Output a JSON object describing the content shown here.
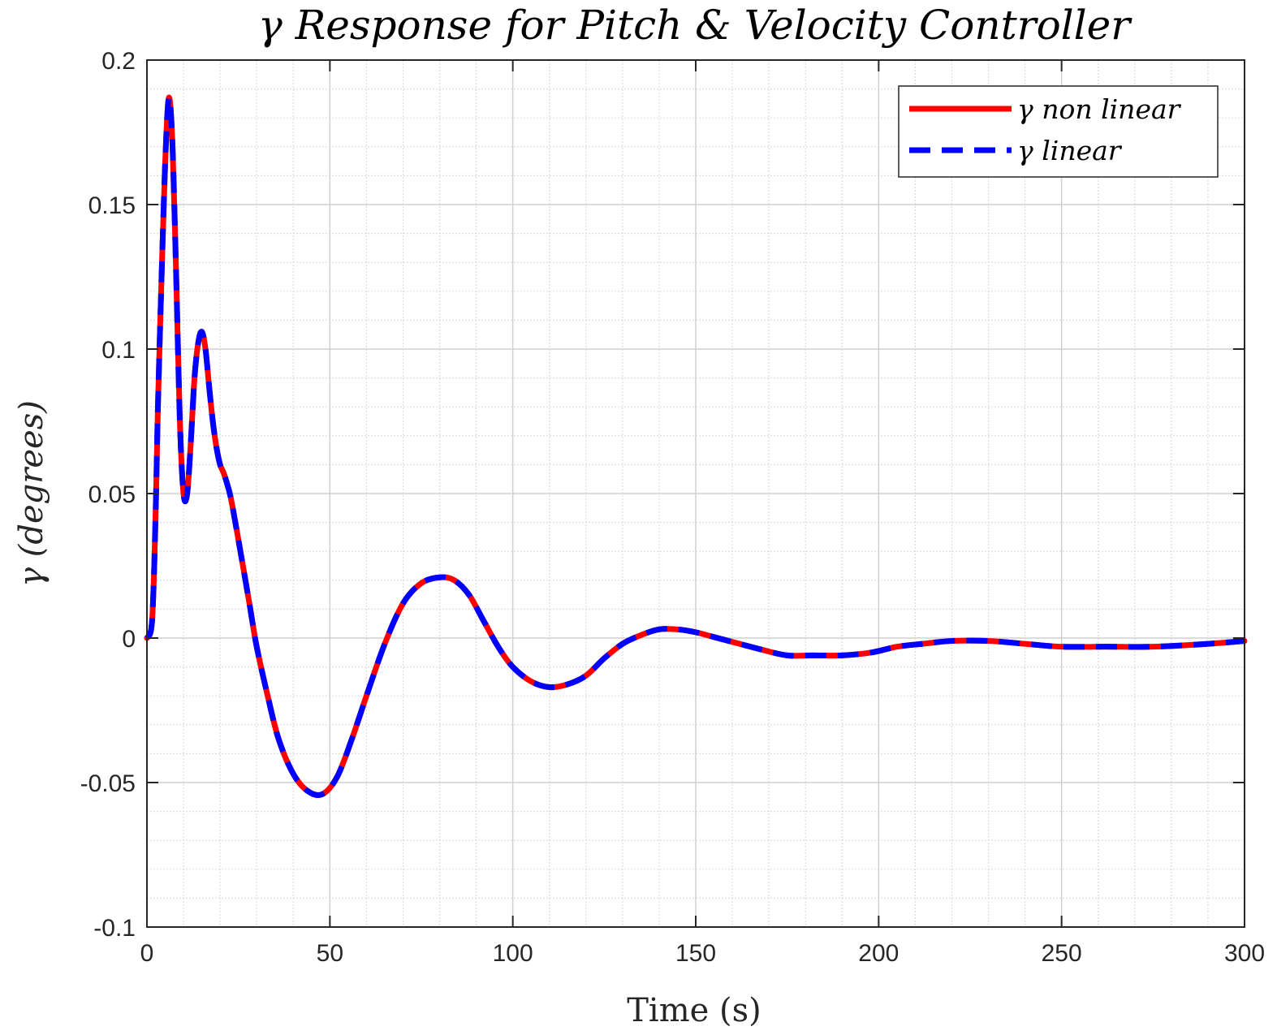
{
  "chart_data": {
    "type": "line",
    "title": "γ Response for Pitch & Velocity Controller",
    "xlabel": "Time (s)",
    "ylabel": "γ (degrees)",
    "xlim": [
      0,
      300
    ],
    "ylim": [
      -0.1,
      0.2
    ],
    "xticks": [
      0,
      50,
      100,
      150,
      200,
      250,
      300
    ],
    "xtick_labels": [
      "0",
      "50",
      "100",
      "150",
      "200",
      "250",
      "300"
    ],
    "yticks": [
      -0.1,
      -0.05,
      0,
      0.05,
      0.1,
      0.15,
      0.2
    ],
    "ytick_labels": [
      "-0.1",
      "-0.05",
      "0",
      "0.05",
      "0.1",
      "0.15",
      "0.2"
    ],
    "x_minor_step": 10,
    "y_minor_step": 0.01,
    "grid": true,
    "minor_grid": true,
    "legend_position": "top-right",
    "series": [
      {
        "name": "γ non linear",
        "color": "#ff0000",
        "style": "solid",
        "x": [
          0,
          1,
          1.5,
          2,
          2.5,
          3,
          4,
          5,
          6,
          7,
          8,
          9,
          10,
          11,
          12,
          13,
          14,
          15,
          16,
          17,
          18,
          19,
          20,
          21,
          22,
          23,
          25,
          28,
          30,
          33,
          36,
          40,
          44,
          48,
          52,
          56,
          60,
          65,
          70,
          75,
          80,
          84,
          88,
          92,
          96,
          100,
          105,
          110,
          115,
          120,
          125,
          130,
          135,
          140,
          145,
          150,
          156,
          162,
          168,
          175,
          182,
          190,
          198,
          205,
          212,
          220,
          230,
          240,
          250,
          262,
          275,
          290,
          300
        ],
        "values": [
          0,
          0.002,
          0.008,
          0.025,
          0.05,
          0.08,
          0.125,
          0.165,
          0.187,
          0.17,
          0.125,
          0.075,
          0.05,
          0.05,
          0.068,
          0.09,
          0.102,
          0.106,
          0.1,
          0.087,
          0.075,
          0.066,
          0.06,
          0.057,
          0.053,
          0.048,
          0.034,
          0.012,
          -0.003,
          -0.02,
          -0.035,
          -0.047,
          -0.053,
          -0.054,
          -0.048,
          -0.035,
          -0.02,
          -0.002,
          0.012,
          0.019,
          0.021,
          0.02,
          0.015,
          0.006,
          -0.003,
          -0.01,
          -0.015,
          -0.017,
          -0.016,
          -0.013,
          -0.007,
          -0.002,
          0.001,
          0.003,
          0.003,
          0.002,
          0,
          -0.002,
          -0.004,
          -0.006,
          -0.006,
          -0.006,
          -0.005,
          -0.003,
          -0.002,
          -0.001,
          -0.001,
          -0.002,
          -0.003,
          -0.003,
          -0.003,
          -0.002,
          -0.001
        ]
      },
      {
        "name": "γ linear",
        "color": "#0000ff",
        "style": "dashed",
        "x": [
          0,
          1,
          1.5,
          2,
          2.5,
          3,
          4,
          5,
          6,
          7,
          8,
          9,
          10,
          11,
          12,
          13,
          14,
          15,
          16,
          17,
          18,
          19,
          20,
          21,
          22,
          23,
          25,
          28,
          30,
          33,
          36,
          40,
          44,
          48,
          52,
          56,
          60,
          65,
          70,
          75,
          80,
          84,
          88,
          92,
          96,
          100,
          105,
          110,
          115,
          120,
          125,
          130,
          135,
          140,
          145,
          150,
          156,
          162,
          168,
          175,
          182,
          190,
          198,
          205,
          212,
          220,
          230,
          240,
          250,
          262,
          275,
          290,
          300
        ],
        "values": [
          0,
          0.002,
          0.008,
          0.025,
          0.05,
          0.08,
          0.125,
          0.165,
          0.187,
          0.17,
          0.125,
          0.075,
          0.05,
          0.05,
          0.068,
          0.09,
          0.102,
          0.106,
          0.1,
          0.087,
          0.075,
          0.066,
          0.06,
          0.057,
          0.053,
          0.048,
          0.034,
          0.012,
          -0.003,
          -0.02,
          -0.035,
          -0.047,
          -0.053,
          -0.054,
          -0.048,
          -0.035,
          -0.02,
          -0.002,
          0.012,
          0.019,
          0.021,
          0.02,
          0.015,
          0.006,
          -0.003,
          -0.01,
          -0.015,
          -0.017,
          -0.016,
          -0.013,
          -0.007,
          -0.002,
          0.001,
          0.003,
          0.003,
          0.002,
          0,
          -0.002,
          -0.004,
          -0.006,
          -0.006,
          -0.006,
          -0.005,
          -0.003,
          -0.002,
          -0.001,
          -0.001,
          -0.002,
          -0.003,
          -0.003,
          -0.003,
          -0.002,
          -0.001
        ]
      }
    ]
  }
}
